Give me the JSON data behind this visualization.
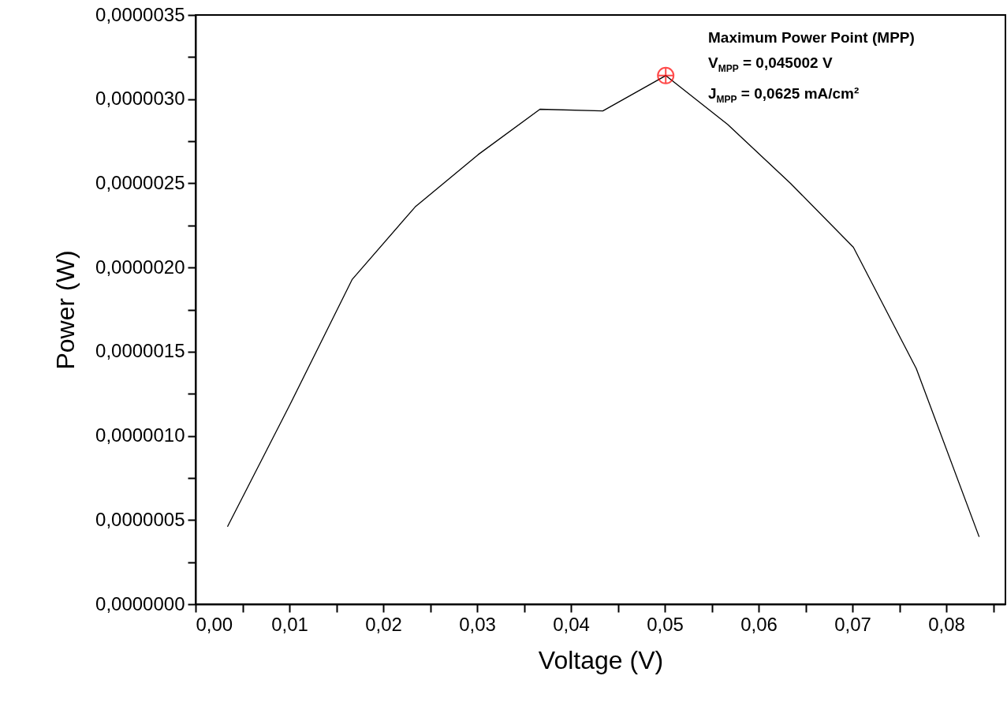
{
  "chart_data": {
    "type": "line",
    "xlabel": "Voltage (V)",
    "ylabel": "Power (W)",
    "xlim": [
      0,
      0.0863
    ],
    "ylim": [
      0,
      3.5e-06
    ],
    "xticks": [
      {
        "value": 0,
        "label": "0,00"
      },
      {
        "value": 0.005,
        "label": null
      },
      {
        "value": 0.01,
        "label": "0,01"
      },
      {
        "value": 0.015,
        "label": null
      },
      {
        "value": 0.02,
        "label": "0,02"
      },
      {
        "value": 0.025,
        "label": null
      },
      {
        "value": 0.03,
        "label": "0,03"
      },
      {
        "value": 0.035,
        "label": null
      },
      {
        "value": 0.04,
        "label": "0,04"
      },
      {
        "value": 0.045,
        "label": null
      },
      {
        "value": 0.05,
        "label": "0,05"
      },
      {
        "value": 0.055,
        "label": null
      },
      {
        "value": 0.06,
        "label": "0,06"
      },
      {
        "value": 0.065,
        "label": null
      },
      {
        "value": 0.07,
        "label": "0,07"
      },
      {
        "value": 0.075,
        "label": null
      },
      {
        "value": 0.08,
        "label": "0,08"
      },
      {
        "value": 0.085,
        "label": null
      }
    ],
    "yticks": [
      {
        "value": 0,
        "label": "0,0000000"
      },
      {
        "value": 2.5e-07,
        "label": null
      },
      {
        "value": 5e-07,
        "label": "0,0000005"
      },
      {
        "value": 7.5e-07,
        "label": null
      },
      {
        "value": 1e-06,
        "label": "0,0000010"
      },
      {
        "value": 1.25e-06,
        "label": null
      },
      {
        "value": 1.5e-06,
        "label": "0,0000015"
      },
      {
        "value": 1.75e-06,
        "label": null
      },
      {
        "value": 2e-06,
        "label": "0,0000020"
      },
      {
        "value": 2.25e-06,
        "label": null
      },
      {
        "value": 2.5e-06,
        "label": "0,0000025"
      },
      {
        "value": 2.75e-06,
        "label": null
      },
      {
        "value": 3e-06,
        "label": "0,0000030"
      },
      {
        "value": 3.25e-06,
        "label": null
      },
      {
        "value": 3.5e-06,
        "label": "0,0000035"
      }
    ],
    "series": [
      {
        "color": "#000000",
        "marker": "none",
        "x": [
          0.0034,
          0.0101,
          0.0167,
          0.0234,
          0.0301,
          0.0367,
          0.0434,
          0.0501,
          0.0567,
          0.0634,
          0.0701,
          0.0768,
          0.0835
        ],
        "values": [
          4.6e-07,
          1.19e-06,
          1.93e-06,
          2.36e-06,
          2.67e-06,
          2.94e-06,
          2.93e-06,
          3.14e-06,
          2.85e-06,
          2.5e-06,
          2.12e-06,
          1.4e-06,
          4e-07
        ]
      },
      {
        "type": "scatter",
        "color": "#ff0000",
        "marker": "cross",
        "x": [
          0.0501
        ],
        "values": [
          3.14e-06
        ]
      }
    ],
    "annotations": [
      "Maximum Power Point (MPP)",
      "V$_{MPP}$ = 0,045002 V",
      "J$_{MPP}$ = 0,0625 mA/cm²"
    ],
    "grid": false
  }
}
